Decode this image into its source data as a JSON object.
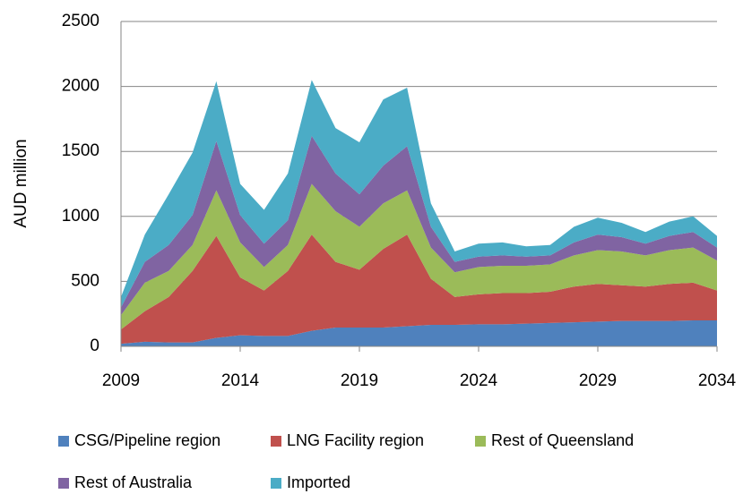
{
  "chart_data": {
    "type": "stacked_area",
    "y_label": "AUD million",
    "x": [
      2009,
      2010,
      2011,
      2012,
      2013,
      2014,
      2015,
      2016,
      2017,
      2018,
      2019,
      2020,
      2021,
      2022,
      2023,
      2024,
      2025,
      2026,
      2027,
      2028,
      2029,
      2030,
      2031,
      2032,
      2033,
      2034
    ],
    "xlim": [
      2009,
      2034
    ],
    "xticks": [
      2009,
      2014,
      2019,
      2024,
      2029,
      2034
    ],
    "ylim": [
      0,
      2500
    ],
    "yticks": [
      0,
      500,
      1000,
      1500,
      2000,
      2500
    ],
    "grid": true,
    "legend": "bottom",
    "series": [
      {
        "name": "CSG/Pipeline region",
        "color": "#4f81bd",
        "values": [
          20,
          35,
          30,
          30,
          65,
          85,
          80,
          80,
          120,
          145,
          145,
          145,
          155,
          165,
          165,
          170,
          170,
          175,
          180,
          185,
          190,
          195,
          195,
          195,
          200,
          200
        ]
      },
      {
        "name": "LNG Facility region",
        "color": "#c0504d",
        "values": [
          110,
          235,
          350,
          550,
          785,
          445,
          350,
          500,
          740,
          505,
          445,
          605,
          705,
          355,
          215,
          230,
          240,
          235,
          240,
          275,
          290,
          275,
          265,
          285,
          290,
          230
        ]
      },
      {
        "name": "Rest of Queensland",
        "color": "#9bbb59",
        "values": [
          110,
          220,
          200,
          200,
          350,
          270,
          180,
          200,
          390,
          390,
          330,
          350,
          340,
          240,
          190,
          210,
          210,
          210,
          210,
          240,
          260,
          260,
          240,
          260,
          270,
          230
        ]
      },
      {
        "name": "Rest of Australia",
        "color": "#8064a2",
        "values": [
          60,
          160,
          200,
          230,
          380,
          210,
          180,
          190,
          370,
          290,
          250,
          290,
          340,
          160,
          80,
          80,
          80,
          70,
          70,
          100,
          120,
          110,
          90,
          110,
          120,
          100
        ]
      },
      {
        "name": "Imported",
        "color": "#4bacc6",
        "values": [
          80,
          210,
          390,
          480,
          460,
          240,
          260,
          360,
          430,
          350,
          400,
          510,
          450,
          180,
          80,
          100,
          100,
          80,
          80,
          120,
          130,
          110,
          90,
          110,
          120,
          90
        ]
      }
    ]
  }
}
